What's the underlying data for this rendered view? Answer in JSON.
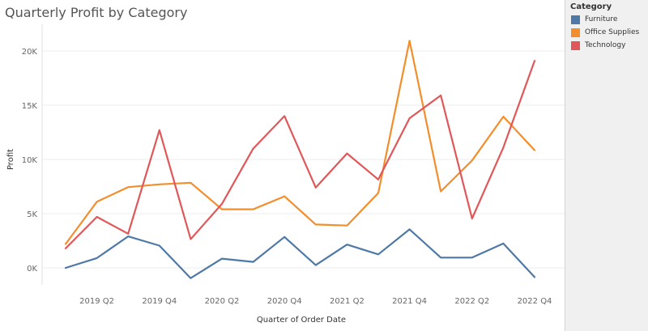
{
  "chart_data": {
    "type": "line",
    "title": "Quarterly Profit by Category",
    "xlabel": "Quarter of Order Date",
    "ylabel": "Profit",
    "ylim": [
      -1000,
      21500
    ],
    "yticks": [
      0,
      5000,
      10000,
      15000,
      20000
    ],
    "ytick_labels": [
      "0K",
      "5K",
      "10K",
      "15K",
      "20K"
    ],
    "categories": [
      "2019 Q1",
      "2019 Q2",
      "2019 Q3",
      "2019 Q4",
      "2020 Q1",
      "2020 Q2",
      "2020 Q3",
      "2020 Q4",
      "2021 Q1",
      "2021 Q2",
      "2021 Q3",
      "2021 Q4",
      "2022 Q1",
      "2022 Q2",
      "2022 Q3",
      "2022 Q4"
    ],
    "xtick_labels": [
      "",
      "2019 Q2",
      "",
      "2019 Q4",
      "",
      "2020 Q2",
      "",
      "2020 Q4",
      "",
      "2021 Q2",
      "",
      "2021 Q4",
      "",
      "2022 Q2",
      "",
      "2022 Q4"
    ],
    "grid": true,
    "legend_position": "right",
    "series": [
      {
        "name": "Furniture",
        "color": "#4e79a7",
        "values": [
          0,
          900,
          2900,
          2050,
          -950,
          850,
          550,
          2850,
          250,
          2150,
          1250,
          3550,
          950,
          950,
          2250,
          -850
        ]
      },
      {
        "name": "Office Supplies",
        "color": "#f28e2b",
        "values": [
          2200,
          6100,
          7450,
          7700,
          7850,
          5400,
          5400,
          6600,
          4000,
          3900,
          6900,
          20950,
          7050,
          9900,
          13950,
          10850
        ]
      },
      {
        "name": "Technology",
        "color": "#e15759",
        "values": [
          1800,
          4700,
          3150,
          12700,
          2650,
          5900,
          11000,
          14000,
          7400,
          10550,
          8150,
          13800,
          15900,
          4550,
          11100,
          19100
        ]
      }
    ]
  },
  "legend": {
    "title": "Category"
  }
}
